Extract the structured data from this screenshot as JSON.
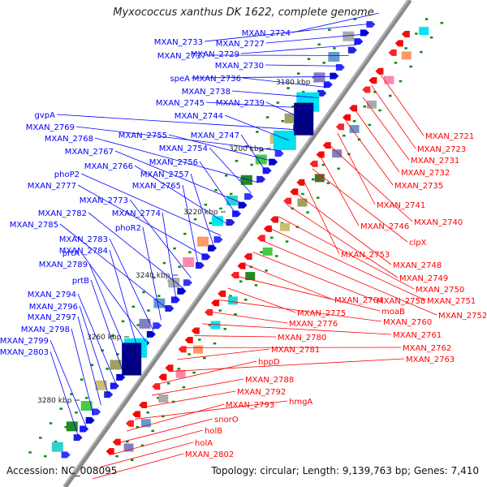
{
  "title": "Myxococcus xanthus DK 1622, complete genome",
  "footer": {
    "accession": "Accession: NC_008095",
    "summary": "Topology: circular; Length: 9,139,763 bp; Genes: 7,410"
  },
  "colors": {
    "forward_label": "#0000ff",
    "reverse_label": "#ff0000",
    "backbone": "#888888"
  },
  "ruler": {
    "labels": [
      "3180 kbp",
      "3200 kbp",
      "3220 kbp",
      "3240 kbp",
      "3260 kbp",
      "3280 kbp"
    ]
  },
  "forward_genes": [
    "MXAN_2724",
    "MXAN_2733",
    "MXAN_2727",
    "MXAN_2729",
    "MXAN_2737",
    "MXAN_2730",
    "speA",
    "MXAN_2736",
    "MXAN_2738",
    "MXAN_2745",
    "MXAN_2739",
    "gvpA",
    "MXAN_2744",
    "MXAN_2769",
    "MXAN_2755",
    "MXAN_2747",
    "MXAN_2768",
    "MXAN_2754",
    "MXAN_2767",
    "MXAN_2756",
    "MXAN_2766",
    "phoP2",
    "MXAN_2757",
    "MXAN_2777",
    "MXAN_2765",
    "MXAN_2773",
    "MXAN_2782",
    "MXAN_2774",
    "MXAN_2785",
    "phoR2",
    "MXAN_2783",
    "prtA",
    "MXAN_2784",
    "MXAN_2789",
    "prtB",
    "MXAN_2794",
    "MXAN_2796",
    "MXAN_2797",
    "MXAN_2798",
    "MXAN_2799",
    "MXAN_2803"
  ],
  "reverse_genes": [
    "MXAN_2721",
    "MXAN_2723",
    "MXAN_2731",
    "MXAN_2732",
    "MXAN_2735",
    "MXAN_2741",
    "MXAN_2740",
    "MXAN_2746",
    "clpX",
    "MXAN_2753",
    "MXAN_2748",
    "MXAN_2749",
    "MXAN_2750",
    "MXAN_2751",
    "MXAN_2752",
    "MXAN_2758",
    "MXAN_2764",
    "moaB",
    "MXAN_2775",
    "MXAN_2760",
    "MXAN_2776",
    "MXAN_2761",
    "MXAN_2780",
    "MXAN_2762",
    "MXAN_2781",
    "MXAN_2763",
    "hppD",
    "MXAN_2788",
    "MXAN_2792",
    "hmgA",
    "MXAN_2793",
    "snorO",
    "holB",
    "holA",
    "MXAN_2802"
  ]
}
